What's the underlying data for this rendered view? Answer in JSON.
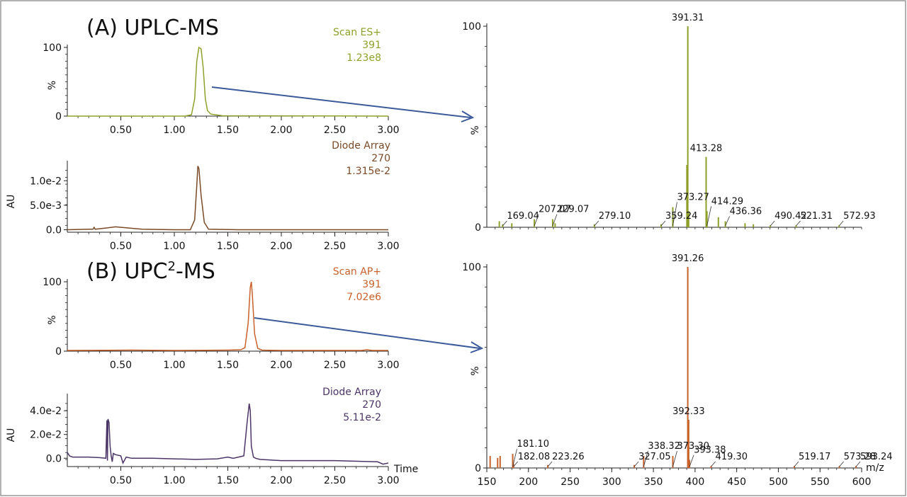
{
  "colors": {
    "uplc_ms": "#8fa02a",
    "uplc_uv": "#7a4a26",
    "upc_ms": "#c8612a",
    "upc_uv": "#4a3566",
    "arrow": "#3b5a9a",
    "axis": "#222222",
    "border": "#999999"
  },
  "panels": {
    "a_title": "(A) UPLC-MS",
    "b_title_prefix": "(B) UPC",
    "b_title_sup": "2",
    "b_title_suffix": "-MS"
  },
  "chart_data": [
    {
      "id": "uplc_tic",
      "type": "line",
      "trace_label": [
        "Scan ES+",
        "391",
        "1.23e8"
      ],
      "ylabel": "%",
      "xlim": [
        0,
        3.0
      ],
      "ylim": [
        0,
        100
      ],
      "yticks": [
        "0",
        "100"
      ],
      "ytick_values": [
        0,
        100
      ],
      "xticks": [
        "0.50",
        "1.00",
        "1.50",
        "2.00",
        "2.50",
        "3.00"
      ],
      "xtick_values": [
        0.5,
        1.0,
        1.5,
        2.0,
        2.5,
        3.0
      ],
      "x": [
        0.0,
        1.1,
        1.16,
        1.19,
        1.21,
        1.23,
        1.25,
        1.27,
        1.29,
        1.31,
        1.34,
        1.45,
        3.0
      ],
      "y": [
        0,
        0,
        2,
        25,
        80,
        100,
        98,
        70,
        25,
        8,
        3,
        0.5,
        0
      ]
    },
    {
      "id": "uplc_uv",
      "type": "line",
      "trace_label": [
        "Diode Array",
        "270",
        "1.315e-2"
      ],
      "ylabel": "AU",
      "xlim": [
        0,
        3.0
      ],
      "ylim": [
        -0.0005,
        0.0135
      ],
      "yticks": [
        "0.0",
        "5.0e-3",
        "1.0e-2"
      ],
      "ytick_values": [
        0,
        0.005,
        0.01
      ],
      "xticks": [
        "0.50",
        "1.00",
        "1.50",
        "2.00",
        "2.50",
        "3.00"
      ],
      "xtick_values": [
        0.5,
        1.0,
        1.5,
        2.0,
        2.5,
        3.0
      ],
      "x": [
        0.0,
        0.2,
        0.24,
        0.25,
        0.26,
        0.3,
        0.38,
        0.45,
        0.55,
        0.7,
        1.0,
        1.15,
        1.19,
        1.21,
        1.22,
        1.23,
        1.25,
        1.28,
        1.32,
        1.6,
        3.0
      ],
      "y": [
        0,
        0.0001,
        0.0001,
        0.0005,
        0.0001,
        0.0002,
        0.0004,
        0.0006,
        0.0004,
        0.0001,
        0,
        0,
        0.002,
        0.009,
        0.013,
        0.0125,
        0.007,
        0.0015,
        0.0001,
        0,
        0
      ]
    },
    {
      "id": "uplc_spectrum",
      "type": "bar",
      "ylabel": "%",
      "xlim": [
        150,
        600
      ],
      "ylim": [
        0,
        100
      ],
      "yticks": [
        "0",
        "100"
      ],
      "ytick_values": [
        0,
        100
      ],
      "peaks": [
        {
          "mz": 165,
          "i": 3
        },
        {
          "mz": 169.04,
          "i": 1.5
        },
        {
          "mz": 180,
          "i": 2
        },
        {
          "mz": 207.07,
          "i": 4
        },
        {
          "mz": 229.07,
          "i": 4
        },
        {
          "mz": 232,
          "i": 2
        },
        {
          "mz": 279.1,
          "i": 1.5
        },
        {
          "mz": 359.24,
          "i": 1.5
        },
        {
          "mz": 373.27,
          "i": 10
        },
        {
          "mz": 390.2,
          "i": 31
        },
        {
          "mz": 391.31,
          "i": 100
        },
        {
          "mz": 392.3,
          "i": 8
        },
        {
          "mz": 413.28,
          "i": 35
        },
        {
          "mz": 414.29,
          "i": 8
        },
        {
          "mz": 428,
          "i": 5
        },
        {
          "mz": 436.36,
          "i": 3
        },
        {
          "mz": 460,
          "i": 2
        },
        {
          "mz": 470,
          "i": 1.5
        },
        {
          "mz": 490.42,
          "i": 1
        },
        {
          "mz": 521.31,
          "i": 1
        },
        {
          "mz": 572.93,
          "i": 1
        }
      ],
      "labels": [
        {
          "text": "391.31",
          "mz": 391.31
        },
        {
          "text": "413.28",
          "mz": 413.28
        },
        {
          "text": "373.27",
          "mz": 373.27
        },
        {
          "text": "414.29",
          "mz": 414.29
        },
        {
          "text": "436.36",
          "mz": 436.36
        },
        {
          "text": "490.42",
          "mz": 490.42
        },
        {
          "text": "521.31",
          "mz": 521.31
        },
        {
          "text": "572.93",
          "mz": 572.93
        },
        {
          "text": "169.04",
          "mz": 169.04
        },
        {
          "text": "207.07",
          "mz": 207.07
        },
        {
          "text": "229.07",
          "mz": 229.07
        },
        {
          "text": "279.10",
          "mz": 279.1
        },
        {
          "text": "359.24",
          "mz": 359.24
        }
      ]
    },
    {
      "id": "upc_tic",
      "type": "line",
      "trace_label": [
        "Scan AP+",
        "391",
        "7.02e6"
      ],
      "ylabel": "%",
      "xlim": [
        0,
        3.0
      ],
      "ylim": [
        0,
        100
      ],
      "yticks": [
        "0",
        "100"
      ],
      "ytick_values": [
        0,
        100
      ],
      "xticks": [
        "0.50",
        "1.00",
        "1.50",
        "2.00",
        "2.50",
        "3.00"
      ],
      "xtick_values": [
        0.5,
        1.0,
        1.5,
        2.0,
        2.5,
        3.0
      ],
      "x": [
        0.0,
        0.6,
        1.0,
        1.5,
        1.62,
        1.66,
        1.69,
        1.71,
        1.72,
        1.73,
        1.75,
        1.78,
        1.82,
        2.0,
        2.5,
        2.75,
        2.8,
        2.85,
        3.0
      ],
      "y": [
        1,
        1.5,
        1,
        1.5,
        2,
        5,
        40,
        92,
        100,
        80,
        25,
        4,
        1.5,
        1,
        1,
        1,
        2,
        1,
        1
      ]
    },
    {
      "id": "upc_uv",
      "type": "line",
      "trace_label": [
        "Diode Array",
        "270",
        "5.11e-2"
      ],
      "ylabel": "AU",
      "xlim": [
        0,
        3.0
      ],
      "ylim": [
        -0.007,
        0.052
      ],
      "yticks": [
        "0.0",
        "2.0e-2",
        "4.0e-2"
      ],
      "ytick_values": [
        0,
        0.02,
        0.04
      ],
      "xticks": [
        "0.50",
        "1.00",
        "1.50",
        "2.00",
        "2.50",
        "3.00"
      ],
      "xtick_values": [
        0.5,
        1.0,
        1.5,
        2.0,
        2.5,
        3.0
      ],
      "x": [
        0.0,
        0.02,
        0.05,
        0.1,
        0.2,
        0.3,
        0.36,
        0.37,
        0.375,
        0.38,
        0.39,
        0.4,
        0.41,
        0.42,
        0.43,
        0.45,
        0.5,
        0.52,
        0.55,
        0.6,
        0.8,
        1.0,
        1.2,
        1.4,
        1.5,
        1.55,
        1.65,
        1.68,
        1.7,
        1.71,
        1.72,
        1.74,
        1.76,
        1.8,
        2.0,
        2.5,
        2.9,
        2.95,
        3.0
      ],
      "y": [
        0.005,
        0.002,
        0.001,
        0.001,
        0.001,
        0.0005,
        0,
        0.032,
        -0.002,
        0.033,
        0.03,
        0.01,
        0.002,
        -0.003,
        0.004,
        0.003,
        0.002,
        -0.004,
        0.001,
        0,
        0,
        -0.0005,
        -0.001,
        -0.0005,
        0.001,
        0,
        0.002,
        0.03,
        0.046,
        0.04,
        0.01,
        0.001,
        0,
        -0.001,
        -0.002,
        -0.002,
        -0.003,
        -0.005,
        -0.004
      ]
    },
    {
      "id": "upc_spectrum",
      "type": "bar",
      "ylabel": "%",
      "xlabel": "m/z",
      "xlim": [
        150,
        600
      ],
      "ylim": [
        0,
        100
      ],
      "yticks": [
        "0",
        "100"
      ],
      "ytick_values": [
        0,
        100
      ],
      "xticks": [
        "150",
        "200",
        "250",
        "300",
        "350",
        "400",
        "450",
        "500",
        "550",
        "600"
      ],
      "xtick_values": [
        150,
        200,
        250,
        300,
        350,
        400,
        450,
        500,
        550,
        600
      ],
      "peaks": [
        {
          "mz": 154,
          "i": 6
        },
        {
          "mz": 163,
          "i": 5
        },
        {
          "mz": 166,
          "i": 6
        },
        {
          "mz": 181.1,
          "i": 7
        },
        {
          "mz": 182.08,
          "i": 2
        },
        {
          "mz": 223.26,
          "i": 1.5
        },
        {
          "mz": 327.05,
          "i": 1.5
        },
        {
          "mz": 338.32,
          "i": 6
        },
        {
          "mz": 373.3,
          "i": 6
        },
        {
          "mz": 391.26,
          "i": 100
        },
        {
          "mz": 392.33,
          "i": 24
        },
        {
          "mz": 393.38,
          "i": 4
        },
        {
          "mz": 419.3,
          "i": 1
        },
        {
          "mz": 519.17,
          "i": 1
        },
        {
          "mz": 573.28,
          "i": 1
        },
        {
          "mz": 593.24,
          "i": 1
        }
      ],
      "labels": [
        {
          "text": "391.26",
          "mz": 391.26
        },
        {
          "text": "392.33",
          "mz": 392.33
        },
        {
          "text": "181.10",
          "mz": 181.1
        },
        {
          "text": "338.32",
          "mz": 338.32
        },
        {
          "text": "373.30",
          "mz": 373.3
        },
        {
          "text": "393.38",
          "mz": 393.38
        },
        {
          "text": "182.08",
          "mz": 182.08
        },
        {
          "text": "223.26",
          "mz": 223.26
        },
        {
          "text": "327.05",
          "mz": 327.05
        },
        {
          "text": "419.30",
          "mz": 419.3
        },
        {
          "text": "519.17",
          "mz": 519.17
        },
        {
          "text": "573.28",
          "mz": 573.28
        },
        {
          "text": "593.24",
          "mz": 593.24
        }
      ]
    }
  ],
  "time_label": "Time"
}
